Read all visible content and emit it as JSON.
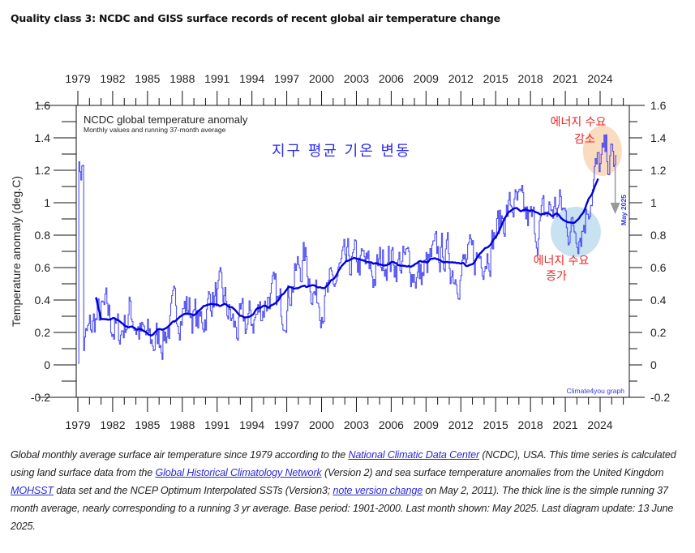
{
  "page": {
    "title": "Quality class 3: NCDC and GISS surface records of recent global air temperature change"
  },
  "caption": {
    "parts": [
      {
        "text": "Global monthly average surface air temperature since 1979 according to the ",
        "link": false
      },
      {
        "text": "National Climatic Data Center",
        "link": true
      },
      {
        "text": " (NCDC), USA. This time series is calculated using land surface data from the ",
        "link": false
      },
      {
        "text": "Global Historical Climatology Network",
        "link": true
      },
      {
        "text": " (Version 2) and sea surface temperature anomalies from the United Kingdom ",
        "link": false
      },
      {
        "text": "MOHSST",
        "link": true
      },
      {
        "text": " data set and the NCEP Optimum Interpolated SSTs (Version3; ",
        "link": false
      },
      {
        "text": "note version change",
        "link": true
      },
      {
        "text": " on May 2, 2011). The thick line is the simple running 37 month average, nearly corresponding to a running 3 yr average. Base period: 1901-2000. Last month shown: May 2025. Last diagram update: 13 June 2025.",
        "link": false
      }
    ]
  },
  "chart_data": {
    "type": "line",
    "title": "NCDC global temperature anomaly",
    "subtitle": "Monthly values and running 37-month average",
    "korean_title": "지구 평균 기온 변동",
    "xlabel": "",
    "ylabel": "Temperature anomaly (deg.C)",
    "xlim": [
      1978.9,
      2026.5
    ],
    "ylim": [
      -0.2,
      1.6
    ],
    "x_ticks": [
      "1979",
      "1982",
      "1985",
      "1988",
      "1991",
      "1994",
      "1997",
      "2000",
      "2003",
      "2006",
      "2009",
      "2012",
      "2015",
      "2018",
      "2021",
      "2024"
    ],
    "y_ticks": [
      "-0.2",
      "0",
      "0.2",
      "0.4",
      "0.6",
      "0.8",
      "1",
      "1.2",
      "1.4",
      "1.6"
    ],
    "grid": false,
    "credit": "Climate4you graph",
    "last_month_label": "May 2025",
    "colors": {
      "monthly": "#3333ee",
      "running_mean": "#0000dd",
      "annotation": "#ee2222",
      "arrow": "#999999",
      "circle_warm": "#f9dcc0",
      "circle_cool": "#c8e2f2"
    },
    "annotations": [
      {
        "text_line1": "에너지 수요",
        "text_line2": "감소",
        "near_year": 2024.2,
        "near_value": 1.32,
        "circle": "warm"
      },
      {
        "text_line1": "에너지 수요",
        "text_line2": "증가",
        "near_year": 2021.9,
        "near_value": 0.82,
        "circle": "cool"
      }
    ],
    "yearly_mean_estimates": {
      "years": [
        1979,
        1980,
        1981,
        1982,
        1983,
        1984,
        1985,
        1986,
        1987,
        1988,
        1989,
        1990,
        1991,
        1992,
        1993,
        1994,
        1995,
        1996,
        1997,
        1998,
        1999,
        2000,
        2001,
        2002,
        2003,
        2004,
        2005,
        2006,
        2007,
        2008,
        2009,
        2010,
        2011,
        2012,
        2013,
        2014,
        2015,
        2016,
        2017,
        2018,
        2019,
        2020,
        2021,
        2022,
        2023,
        2024,
        2025
      ],
      "values": [
        0.12,
        0.28,
        0.32,
        0.18,
        0.34,
        0.17,
        0.14,
        0.2,
        0.34,
        0.36,
        0.24,
        0.43,
        0.4,
        0.22,
        0.25,
        0.31,
        0.45,
        0.33,
        0.52,
        0.66,
        0.42,
        0.41,
        0.56,
        0.62,
        0.62,
        0.55,
        0.68,
        0.63,
        0.62,
        0.54,
        0.64,
        0.7,
        0.58,
        0.62,
        0.67,
        0.74,
        0.9,
        0.99,
        0.91,
        0.83,
        0.95,
        0.98,
        0.84,
        0.87,
        1.17,
        1.29,
        1.22
      ]
    },
    "series": [
      {
        "name": "Monthly values",
        "style": "thin step line"
      },
      {
        "name": "Running 37-month average",
        "style": "thick line"
      }
    ]
  }
}
